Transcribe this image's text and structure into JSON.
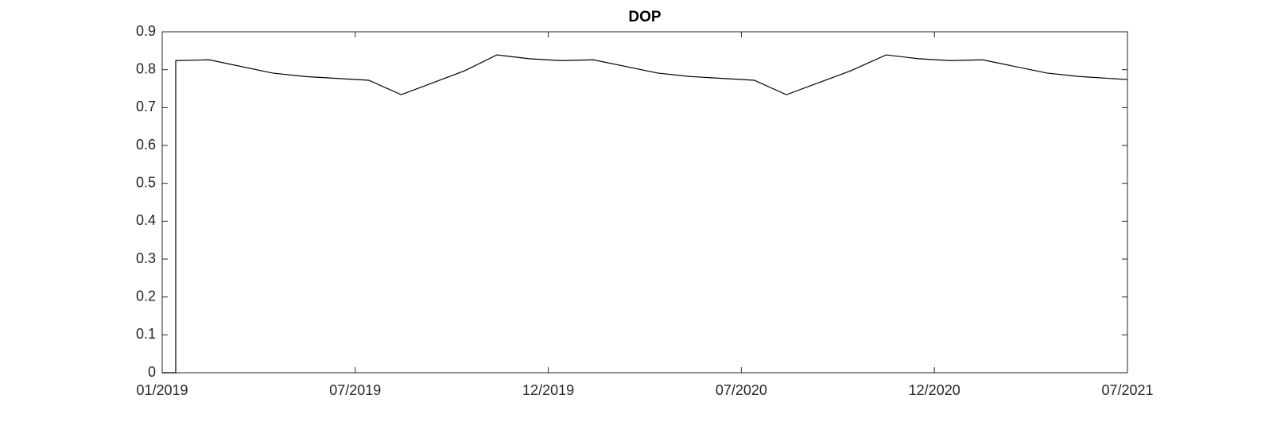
{
  "chart_data": {
    "type": "line",
    "title": "DOP",
    "x": [
      0,
      0.42,
      0.42,
      1.46,
      3.43,
      4.42,
      6.42,
      7.43,
      9.4,
      10.4,
      11.4,
      12.4,
      13.4,
      15.4,
      16.4,
      18.4,
      19.4,
      21.4,
      22.5,
      23.5,
      24.5,
      25.5,
      27.5,
      28.5,
      30
    ],
    "series": [
      {
        "name": "DOP",
        "color": "#000000",
        "values": [
          0,
          0,
          0.824,
          0.826,
          0.791,
          0.782,
          0.772,
          0.734,
          0.797,
          0.839,
          0.829,
          0.824,
          0.826,
          0.791,
          0.782,
          0.772,
          0.734,
          0.797,
          0.839,
          0.829,
          0.824,
          0.826,
          0.791,
          0.782,
          0.774
        ]
      }
    ],
    "xlim": [
      0,
      30
    ],
    "xticks": [
      {
        "value": 0,
        "label": "01/2019"
      },
      {
        "value": 6,
        "label": "07/2019"
      },
      {
        "value": 12,
        "label": "12/2019"
      },
      {
        "value": 18,
        "label": "07/2020"
      },
      {
        "value": 24,
        "label": "12/2020"
      },
      {
        "value": 30,
        "label": "07/2021"
      }
    ],
    "ylim": [
      0,
      0.9
    ],
    "yticks": [
      0,
      0.1,
      0.2,
      0.3,
      0.4,
      0.5,
      0.6,
      0.7,
      0.8,
      0.9
    ],
    "grid": false
  }
}
